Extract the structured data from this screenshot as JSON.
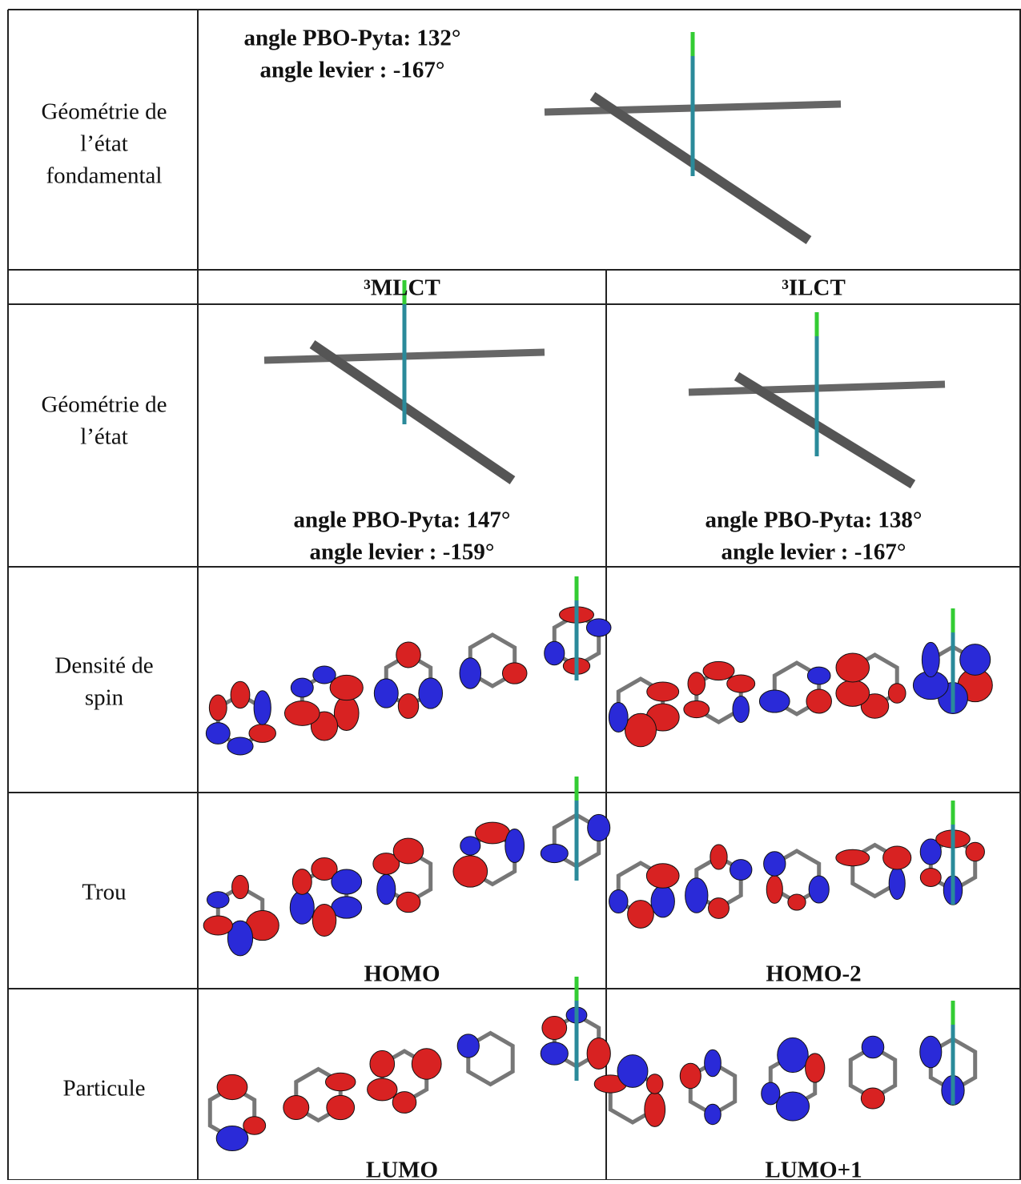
{
  "ground": {
    "label_lines": [
      "Géométrie de",
      "l’état",
      "fondamental"
    ],
    "angles": [
      "angle PBO-Pyta: 132°",
      "angle levier : -167°"
    ]
  },
  "columns": [
    "³MLCT",
    "³ILCT"
  ],
  "rows": [
    {
      "label_lines": [
        "Géométrie de",
        "l’état"
      ],
      "cells": [
        {
          "caption": [
            "angle PBO-Pyta: 147°",
            "angle levier : -159°"
          ]
        },
        {
          "caption": [
            "angle PBO-Pyta: 138°",
            "angle levier : -167°"
          ]
        }
      ]
    },
    {
      "label_lines": [
        "Densité de",
        "spin"
      ]
    },
    {
      "label_lines": [
        "Trou"
      ],
      "cells": [
        {
          "caption": [
            "HOMO"
          ]
        },
        {
          "caption": [
            "HOMO-2"
          ]
        }
      ]
    },
    {
      "label_lines": [
        "Particule"
      ],
      "cells": [
        {
          "caption": [
            "LUMO"
          ]
        },
        {
          "caption": [
            "LUMO+1"
          ]
        }
      ]
    }
  ]
}
